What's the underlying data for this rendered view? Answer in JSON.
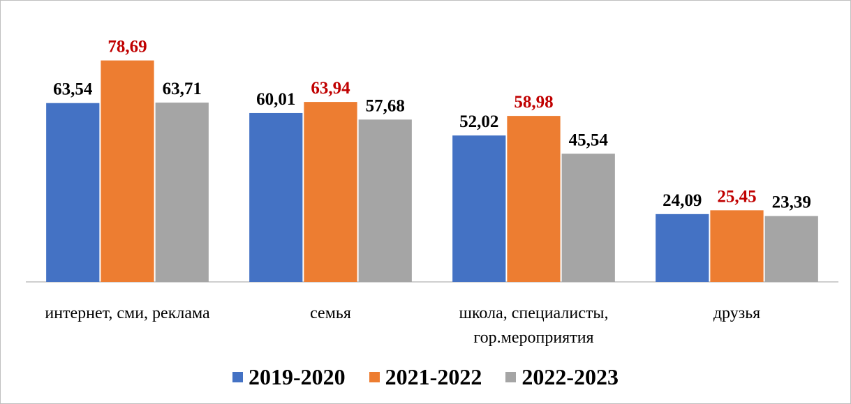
{
  "chart_data": {
    "type": "bar",
    "categories": [
      "интернет, сми, реклама",
      "семья",
      "школа, специалисты, гор.мероприятия",
      "друзья"
    ],
    "series": [
      {
        "name": "2019-2020",
        "color": "#4472c4",
        "label_color": "#000000",
        "values": [
          63.54,
          60.01,
          52.02,
          24.09
        ],
        "value_labels": [
          "63,54",
          "60,01",
          "52,02",
          "24,09"
        ]
      },
      {
        "name": "2021-2022",
        "color": "#ed7d31",
        "label_color": "#c00000",
        "values": [
          78.69,
          63.94,
          58.98,
          25.45
        ],
        "value_labels": [
          "78,69",
          "63,94",
          "58,98",
          "25,45"
        ]
      },
      {
        "name": "2022-2023",
        "color": "#a5a5a5",
        "label_color": "#000000",
        "values": [
          63.71,
          57.68,
          45.54,
          23.39
        ],
        "value_labels": [
          "63,71",
          "57,68",
          "45,54",
          "23,39"
        ]
      }
    ],
    "ylim": [
      0,
      90
    ],
    "legend": "bottom"
  }
}
